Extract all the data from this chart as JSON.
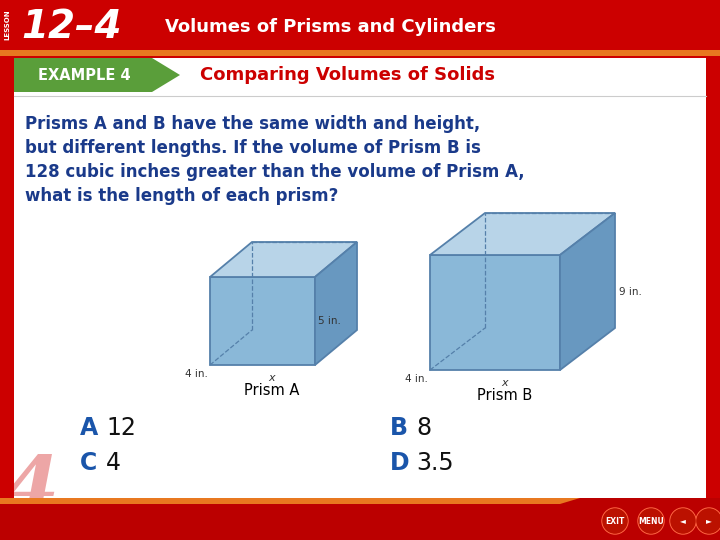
{
  "header_bg": "#cc0000",
  "header_text_num": "12–4",
  "header_text_sub": "Volumes of Prisms and Cylinders",
  "header_text_color": "#ffffff",
  "lesson_label": "LESSON",
  "example_bg_top": "#5a9e3a",
  "example_bg_bot": "#3d7a25",
  "example_text": "EXAMPLE 4",
  "example_text_color": "#ffffff",
  "title_text": "Comparing Volumes of Solids",
  "title_color": "#cc0000",
  "body_bg": "#ffffff",
  "body_text_color": "#1a3a8a",
  "body_text_line1": "Prisms A and B have the same width and height,",
  "body_text_line2": "but different lengths. If the volume of Prism B is",
  "body_text_line3": "128 cubic inches greater than the volume of Prism A,",
  "body_text_line4": "what is the length of each prism?",
  "prism_face_front": "#8ab8d8",
  "prism_face_top": "#b8d4e8",
  "prism_face_right": "#6898c0",
  "prism_edge": "#5580aa",
  "prism_label_a": "Prism A",
  "prism_label_b": "Prism B",
  "dim_color": "#333333",
  "answer_letter_color": "#1a55aa",
  "answer_value_color": "#111111",
  "border_red": "#cc0000",
  "orange_stripe": "#e87820",
  "footer_bg": "#bb0000",
  "btn_color": "#aa1100",
  "swirl_color": "#cc0000"
}
